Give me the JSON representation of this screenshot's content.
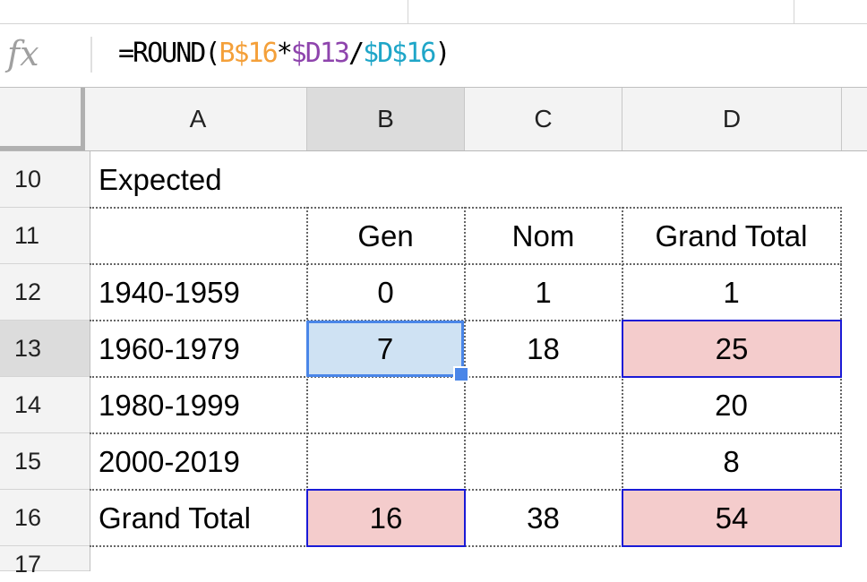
{
  "formula_bar": {
    "fx_label": "fx",
    "tokens": [
      {
        "text": "=ROUND(",
        "color": "#000000"
      },
      {
        "text": "B$16",
        "color": "#f4a03a"
      },
      {
        "text": "*",
        "color": "#000000"
      },
      {
        "text": "$D13",
        "color": "#8e44ad"
      },
      {
        "text": "/",
        "color": "#000000"
      },
      {
        "text": "$D$16",
        "color": "#1fa6c8"
      },
      {
        "text": ")",
        "color": "#000000"
      }
    ]
  },
  "columns": [
    "A",
    "B",
    "C",
    "D"
  ],
  "active_column": "B",
  "rows": [
    "10",
    "11",
    "12",
    "13",
    "14",
    "15",
    "16",
    "17"
  ],
  "active_row": "13",
  "cells": {
    "A10": "Expected",
    "B11": "Gen",
    "C11": "Nom",
    "D11": "Grand Total",
    "A12": "1940-1959",
    "B12": "0",
    "C12": "1",
    "D12": "1",
    "A13": "1960-1979",
    "B13": "7",
    "C13": "18",
    "D13": "25",
    "A14": "1980-1999",
    "D14": "20",
    "A15": "2000-2019",
    "D15": "8",
    "A16": "Grand Total",
    "B16": "16",
    "C16": "38",
    "D16": "54"
  },
  "colors": {
    "selected_fill": "#cfe2f3",
    "selected_border": "#4a86e8",
    "referenced_fill": "#f4cccc",
    "referenced_border": "#1a1ad6"
  }
}
